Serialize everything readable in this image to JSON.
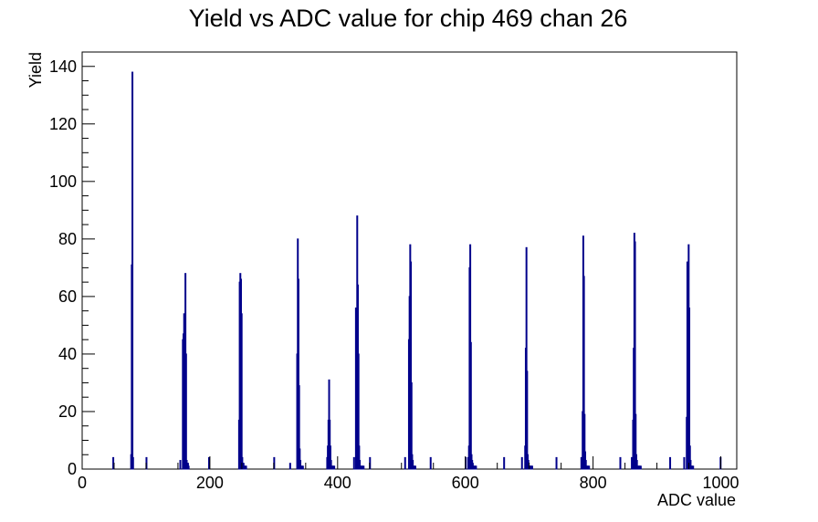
{
  "chart_data": {
    "type": "bar",
    "title": "Yield vs ADC value for chip 469 chan 26",
    "xlabel": "ADC value",
    "ylabel": "Yield",
    "xlim": [
      0,
      1025
    ],
    "ylim": [
      0,
      145
    ],
    "grid": false,
    "legend": "none",
    "bin_width": 1,
    "line_color": "#00008b",
    "x_ticks": [
      0,
      200,
      400,
      600,
      800,
      1000
    ],
    "x_tick_labels": [
      "0",
      "200",
      "400",
      "600",
      "800",
      "1000"
    ],
    "y_ticks": [
      0,
      20,
      40,
      60,
      80,
      100,
      120,
      140
    ],
    "y_tick_labels": [
      "0",
      "20",
      "40",
      "60",
      "80",
      "100",
      "120",
      "140"
    ],
    "x": [
      48,
      76,
      77,
      78,
      79,
      100,
      153,
      157,
      158,
      159,
      160,
      161,
      162,
      163,
      164,
      165,
      166,
      198,
      245,
      246,
      247,
      248,
      249,
      250,
      251,
      252,
      253,
      254,
      255,
      256,
      300,
      325,
      336,
      337,
      338,
      339,
      340,
      341,
      342,
      343,
      344,
      345,
      383,
      384,
      385,
      386,
      387,
      388,
      389,
      390,
      391,
      392,
      393,
      394,
      425,
      428,
      429,
      430,
      431,
      432,
      433,
      434,
      435,
      436,
      437,
      438,
      439,
      440,
      450,
      505,
      511,
      512,
      513,
      514,
      515,
      516,
      517,
      518,
      519,
      520,
      521,
      545,
      600,
      604,
      605,
      606,
      607,
      608,
      609,
      610,
      611,
      612,
      613,
      614,
      615,
      616,
      660,
      688,
      693,
      694,
      695,
      696,
      697,
      698,
      699,
      700,
      701,
      702,
      703,
      704,
      742,
      781,
      783,
      784,
      785,
      786,
      787,
      788,
      789,
      790,
      791,
      792,
      793,
      842,
      860,
      862,
      863,
      864,
      865,
      866,
      867,
      868,
      869,
      870,
      871,
      872,
      873,
      874,
      920,
      942,
      946,
      947,
      948,
      949,
      950,
      951,
      952,
      953,
      954,
      955,
      956,
      999
    ],
    "values": [
      4,
      5,
      71,
      138,
      4,
      4,
      3,
      45,
      47,
      54,
      46,
      68,
      40,
      3,
      2,
      2,
      1,
      4,
      17,
      65,
      68,
      66,
      54,
      4,
      2,
      2,
      1,
      1,
      1,
      1,
      4,
      2,
      40,
      80,
      66,
      29,
      7,
      3,
      1,
      1,
      1,
      1,
      4,
      8,
      17,
      31,
      17,
      8,
      3,
      1,
      1,
      1,
      1,
      1,
      4,
      56,
      28,
      88,
      64,
      40,
      8,
      3,
      1,
      1,
      1,
      1,
      1,
      1,
      4,
      4,
      45,
      60,
      78,
      72,
      30,
      5,
      3,
      1,
      1,
      1,
      1,
      4,
      4,
      4,
      8,
      70,
      78,
      44,
      5,
      3,
      2,
      1,
      1,
      1,
      1,
      1,
      4,
      4,
      8,
      42,
      77,
      34,
      5,
      3,
      1,
      1,
      1,
      1,
      1,
      1,
      4,
      4,
      20,
      81,
      67,
      19,
      6,
      3,
      1,
      1,
      1,
      1,
      1,
      4,
      4,
      17,
      42,
      82,
      79,
      19,
      5,
      3,
      1,
      1,
      1,
      1,
      1,
      1,
      4,
      4,
      18,
      72,
      40,
      78,
      56,
      8,
      3,
      1,
      1,
      1,
      1,
      4
    ]
  }
}
